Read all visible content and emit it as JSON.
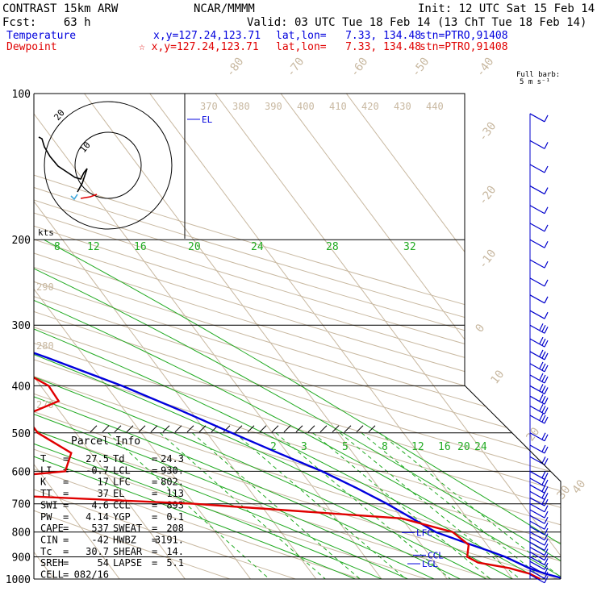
{
  "header": {
    "line1_left": "CONTRAST 15km ARW",
    "line1_center": "NCAR/MMMM",
    "line1_right": "Init: 12 UTC Sat 15 Feb 14",
    "line2_left": "Fcst:    63 h",
    "line2_right": "Valid: 03 UTC Tue 18 Feb 14 (13 ChT Tue 18 Feb 14)",
    "line3_label": "Temperature",
    "line3_xy": "x,y=127.24,123.71",
    "line3_latlon": "lat,lon=   7.33, 134.48",
    "line3_stn": "stn=PTRO,91408",
    "line4_label": "Dewpoint",
    "line4_xy": "☆ x,y=127.24,123.71",
    "line4_latlon": "lat,lon=   7.33, 134.48",
    "line4_stn": "stn=PTRO,91408"
  },
  "colors": {
    "temperature": "#0000dd",
    "dewpoint": "#e00000",
    "isotherm": "#c8b8a0",
    "theta": "#c8b8a0",
    "moist": "#22aa22",
    "mixing": "#22aa22",
    "isobar": "#000000",
    "wind": "#0000cc"
  },
  "chart_data": {
    "type": "skew-t",
    "pressure_levels": [
      100,
      200,
      300,
      400,
      500,
      600,
      700,
      800,
      900,
      1000
    ],
    "pressure_labels": [
      "100",
      "200",
      "300",
      "400",
      "500",
      "600",
      "700",
      "800",
      "900",
      "1000"
    ],
    "isotherm_labels": [
      "-80",
      "-70",
      "-60",
      "-50",
      "-40",
      "-30",
      "-20",
      "-10",
      "0",
      "10",
      "20",
      "30",
      "40"
    ],
    "theta_labels_top": [
      "370",
      "380",
      "390",
      "400",
      "410",
      "420",
      "430",
      "440"
    ],
    "theta_labels_left": [
      "290",
      "280",
      "270"
    ],
    "moist_labels": [
      "8",
      "12",
      "16",
      "20",
      "24",
      "28",
      "32"
    ],
    "mixing_labels": [
      "2",
      "3",
      "5",
      "8",
      "12",
      "16",
      "20",
      "24"
    ],
    "temperature_profile": [
      {
        "p": 1000,
        "t": 28.0
      },
      {
        "p": 975,
        "t": 25.6
      },
      {
        "p": 950,
        "t": 23.8
      },
      {
        "p": 925,
        "t": 22.6
      },
      {
        "p": 900,
        "t": 21.4
      },
      {
        "p": 875,
        "t": 19.6
      },
      {
        "p": 850,
        "t": 17.6
      },
      {
        "p": 800,
        "t": 13.6
      },
      {
        "p": 750,
        "t": 11.6
      },
      {
        "p": 700,
        "t": 9.4
      },
      {
        "p": 650,
        "t": 6.6
      },
      {
        "p": 600,
        "t": 3.2
      },
      {
        "p": 550,
        "t": -1.4
      },
      {
        "p": 500,
        "t": -6.2
      },
      {
        "p": 450,
        "t": -11.4
      },
      {
        "p": 400,
        "t": -17.6
      },
      {
        "p": 350,
        "t": -25.8
      },
      {
        "p": 300,
        "t": -36.2
      },
      {
        "p": 250,
        "t": -47.8
      },
      {
        "p": 200,
        "t": -59.4
      },
      {
        "p": 175,
        "t": -66.4
      },
      {
        "p": 150,
        "t": -73.2
      },
      {
        "p": 125,
        "t": -80.6
      },
      {
        "p": 110,
        "t": -85.6
      },
      {
        "p": 100,
        "t": -86.2
      }
    ],
    "dewpoint_profile": [
      {
        "p": 1000,
        "t": 24.2
      },
      {
        "p": 975,
        "t": 23.2
      },
      {
        "p": 950,
        "t": 20.8
      },
      {
        "p": 925,
        "t": 16.6
      },
      {
        "p": 900,
        "t": 15.6
      },
      {
        "p": 850,
        "t": 17.2
      },
      {
        "p": 800,
        "t": 16.2
      },
      {
        "p": 750,
        "t": 10.0
      },
      {
        "p": 700,
        "t": -20.0
      },
      {
        "p": 660,
        "t": -60.0
      },
      {
        "p": 650,
        "t": -66.0
      },
      {
        "p": 600,
        "t": -36.0
      },
      {
        "p": 550,
        "t": -33.0
      },
      {
        "p": 500,
        "t": -35.8
      },
      {
        "p": 460,
        "t": -35.8
      },
      {
        "p": 430,
        "t": -29.0
      },
      {
        "p": 400,
        "t": -28.8
      },
      {
        "p": 370,
        "t": -31.4
      },
      {
        "p": 350,
        "t": -38.4
      },
      {
        "p": 330,
        "t": -42.6
      },
      {
        "p": 300,
        "t": -46.4
      },
      {
        "p": 275,
        "t": -49.0
      },
      {
        "p": 250,
        "t": -54.0
      },
      {
        "p": 225,
        "t": -61.0
      },
      {
        "p": 200,
        "t": -68.0
      },
      {
        "p": 175,
        "t": -75.4
      },
      {
        "p": 150,
        "t": -82.0
      },
      {
        "p": 130,
        "t": -88.2
      },
      {
        "p": 115,
        "t": -90.8
      },
      {
        "p": 100,
        "t": -87.2
      }
    ],
    "level_markers": [
      {
        "name": "EL",
        "p": 113
      },
      {
        "name": "LFC",
        "p": 802
      },
      {
        "name": "CCL",
        "p": 893
      },
      {
        "name": "LCL",
        "p": 930
      }
    ],
    "hodograph": {
      "ring_labels": [
        "10",
        "20"
      ],
      "units": "kts"
    },
    "wind_header": "Full barb:",
    "wind_units": "5 m s⁻¹",
    "wind_barb_levels": [
      110,
      125,
      140,
      155,
      170,
      185,
      200,
      220,
      240,
      260,
      280,
      300,
      320,
      340,
      360,
      380,
      400,
      420,
      440,
      460,
      500,
      530,
      560,
      600,
      620,
      640,
      660,
      680,
      700,
      720,
      740,
      760,
      780,
      800,
      820,
      840,
      860,
      880,
      900,
      920,
      940,
      960,
      980
    ],
    "parcel_info": {
      "title": "Parcel Info",
      "rows": [
        {
          "k1": "T",
          "v1": "27.5",
          "k2": "Td",
          "v2": "24.3"
        },
        {
          "k1": "LI",
          "v1": "-0.7",
          "k2": "LCL",
          "v2": "930."
        },
        {
          "k1": "K",
          "v1": "17",
          "k2": "LFC",
          "v2": "802."
        },
        {
          "k1": "TT",
          "v1": "37",
          "k2": "EL",
          "v2": "113"
        },
        {
          "k1": "SWI",
          "v1": "4.6",
          "k2": "CCL",
          "v2": "893"
        },
        {
          "k1": "PW",
          "v1": "4.14",
          "k2": "YGP",
          "v2": "0.1"
        },
        {
          "k1": "CAPE",
          "v1": "537",
          "k2": "SWEAT",
          "v2": "208"
        },
        {
          "k1": "CIN",
          "v1": "-42",
          "k2": "HWBZ",
          "v2": "3191."
        },
        {
          "k1": "Tc",
          "v1": "30.7",
          "k2": "SHEAR",
          "v2": "14."
        },
        {
          "k1": "SREH",
          "v1": "54",
          "k2": "LAPSE",
          "v2": "5.1"
        },
        {
          "k1": "CELL",
          "v1": "082/16",
          "k2": "",
          "v2": ""
        }
      ]
    }
  }
}
